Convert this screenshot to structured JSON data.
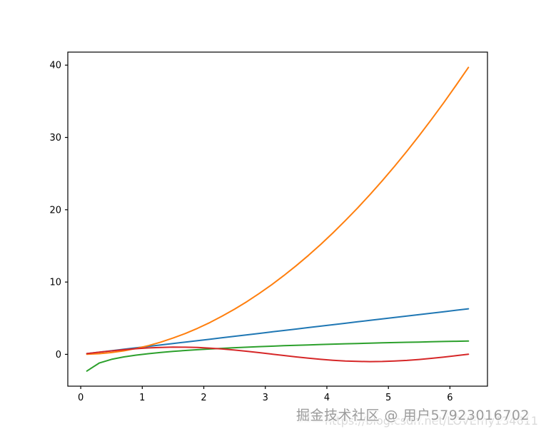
{
  "chart_data": {
    "type": "line",
    "title": "",
    "xlabel": "",
    "ylabel": "",
    "grid": false,
    "legend": "none",
    "xlim": [
      -0.21,
      6.61
    ],
    "ylim": [
      -4.4,
      41.8
    ],
    "x_ticks": [
      0,
      1,
      2,
      3,
      4,
      5,
      6
    ],
    "y_ticks": [
      0,
      10,
      20,
      30,
      40
    ],
    "x": [
      0.1,
      0.3,
      0.5,
      0.7,
      0.9,
      1.1,
      1.3,
      1.5,
      1.7,
      1.9,
      2.1,
      2.3,
      2.5,
      2.7,
      2.9,
      3.1,
      3.3,
      3.5,
      3.7,
      3.9,
      4.1,
      4.3,
      4.5,
      4.7,
      4.9,
      5.1,
      5.3,
      5.5,
      5.7,
      5.9,
      6.1,
      6.3
    ],
    "series": [
      {
        "name": "blue-line",
        "color": "#1f77b4",
        "values": [
          0.1,
          0.3,
          0.5,
          0.7,
          0.9,
          1.1,
          1.3,
          1.5,
          1.7,
          1.9,
          2.1,
          2.3,
          2.5,
          2.7,
          2.9,
          3.1,
          3.3,
          3.5,
          3.7,
          3.9,
          4.1,
          4.3,
          4.5,
          4.7,
          4.9,
          5.1,
          5.3,
          5.5,
          5.7,
          5.9,
          6.1,
          6.3
        ]
      },
      {
        "name": "orange-line",
        "color": "#ff7f0e",
        "values": [
          0.01,
          0.09,
          0.25,
          0.49,
          0.81,
          1.21,
          1.69,
          2.25,
          2.89,
          3.61,
          4.41,
          5.29,
          6.25,
          7.29,
          8.41,
          9.61,
          10.89,
          12.25,
          13.69,
          15.21,
          16.81,
          18.49,
          20.25,
          22.09,
          24.01,
          26.01,
          28.09,
          30.25,
          32.49,
          34.81,
          37.21,
          39.69
        ]
      },
      {
        "name": "green-line",
        "color": "#2ca02c",
        "values": [
          -2.303,
          -1.204,
          -0.693,
          -0.357,
          -0.105,
          0.095,
          0.262,
          0.405,
          0.531,
          0.642,
          0.742,
          0.833,
          0.916,
          0.993,
          1.065,
          1.131,
          1.194,
          1.253,
          1.308,
          1.361,
          1.411,
          1.459,
          1.504,
          1.548,
          1.589,
          1.629,
          1.668,
          1.705,
          1.74,
          1.775,
          1.808,
          1.841
        ]
      },
      {
        "name": "red-line",
        "color": "#d62728",
        "values": [
          0.1,
          0.296,
          0.479,
          0.644,
          0.783,
          0.891,
          0.964,
          0.997,
          0.992,
          0.946,
          0.863,
          0.746,
          0.599,
          0.427,
          0.239,
          0.042,
          -0.158,
          -0.351,
          -0.53,
          -0.688,
          -0.818,
          -0.916,
          -0.978,
          -1.0,
          -0.982,
          -0.926,
          -0.832,
          -0.706,
          -0.551,
          -0.374,
          -0.182,
          0.017
        ]
      }
    ]
  },
  "colors": {
    "background": "#ffffff",
    "spine": "#000000",
    "tick_label": "#000000"
  },
  "watermark": {
    "main": "掘金技术社区 @ 用户57923016702",
    "sub": "https://blog.csdn.net/LOVEmy134611",
    "main_color": "#9b9b9b",
    "sub_color": "#dadada"
  }
}
